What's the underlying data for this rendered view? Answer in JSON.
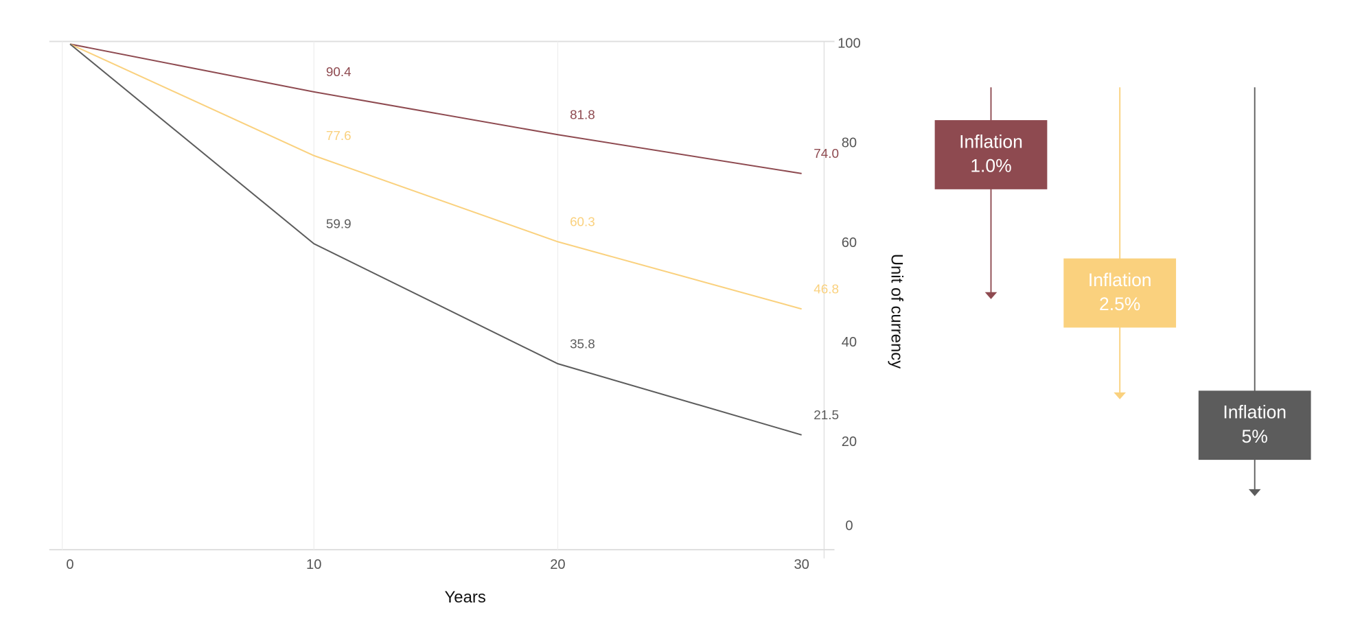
{
  "chart_data": {
    "type": "line",
    "x": [
      0,
      10,
      20,
      30
    ],
    "xlabel": "Years",
    "ylabel": "Unit of currency",
    "xlim": [
      0,
      30
    ],
    "xticks": [
      0,
      10,
      20,
      30
    ],
    "ylim": [
      0,
      100
    ],
    "yticks": [
      0,
      20,
      40,
      60,
      80,
      100
    ],
    "grid": true,
    "series": [
      {
        "name": "Inflation 1.0%",
        "color": "#8e4a50",
        "values": [
          100,
          90.4,
          81.8,
          74
        ],
        "value_labels": [
          null,
          "90.4",
          "81.8",
          "74.0"
        ]
      },
      {
        "name": "Inflation 2.5%",
        "color": "#fad17e",
        "values": [
          100,
          77.6,
          60.3,
          46.8
        ],
        "value_labels": [
          null,
          "77.6",
          "60.3",
          "46.8"
        ]
      },
      {
        "name": "Inflation 5%",
        "color": "#5c5c5c",
        "values": [
          100,
          59.9,
          35.8,
          21.5
        ],
        "value_labels": [
          null,
          "59.9",
          "35.8",
          "21.5"
        ]
      }
    ]
  }
}
